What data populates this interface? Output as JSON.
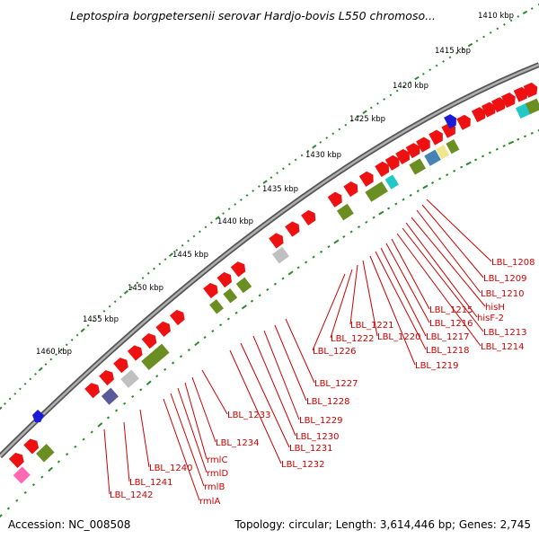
{
  "title": "Leptospira borgpetersenii serovar Hardjo-bovis L550 chromoso...",
  "accession": "Accession: NC_008508",
  "summary": "Topology: circular; Length: 3,614,446 bp; Genes: 2,745",
  "colors": {
    "red_gene": "#ee1111",
    "backbone": "#808080",
    "olive": "#6b8e23",
    "cyan": "#20c8c8",
    "gray": "#c0c0c0",
    "slate": "#5a5a9a",
    "pink": "#ff69b4",
    "blue": "#1a1ad8",
    "tick_green": "#2a8a2a",
    "label_red": "#cc0000"
  },
  "ticks": [
    "1410 kbp",
    "1415 kbp",
    "1420 kbp",
    "1425 kbp",
    "1430 kbp",
    "1435 kbp",
    "1440 kbp",
    "1445 kbp",
    "1450 kbp",
    "1455 kbp",
    "1460 kbp"
  ],
  "labels": [
    "LBL_1208",
    "LBL_1209",
    "LBL_1210",
    "hisH",
    "hisF-2",
    "LBL_1213",
    "LBL_1214",
    "LBL_1215",
    "LBL_1216",
    "LBL_1217",
    "LBL_1218",
    "LBL_1219",
    "LBL_1220",
    "LBL_1221",
    "LBL_1222",
    "LBL_1226",
    "LBL_1227",
    "LBL_1228",
    "LBL_1229",
    "LBL_1230",
    "LBL_1231",
    "LBL_1232",
    "LBL_1233",
    "LBL_1234",
    "rmlC",
    "rmlD",
    "rmlB",
    "rmlA",
    "LBL_1240",
    "LBL_1241",
    "LBL_1242"
  ]
}
